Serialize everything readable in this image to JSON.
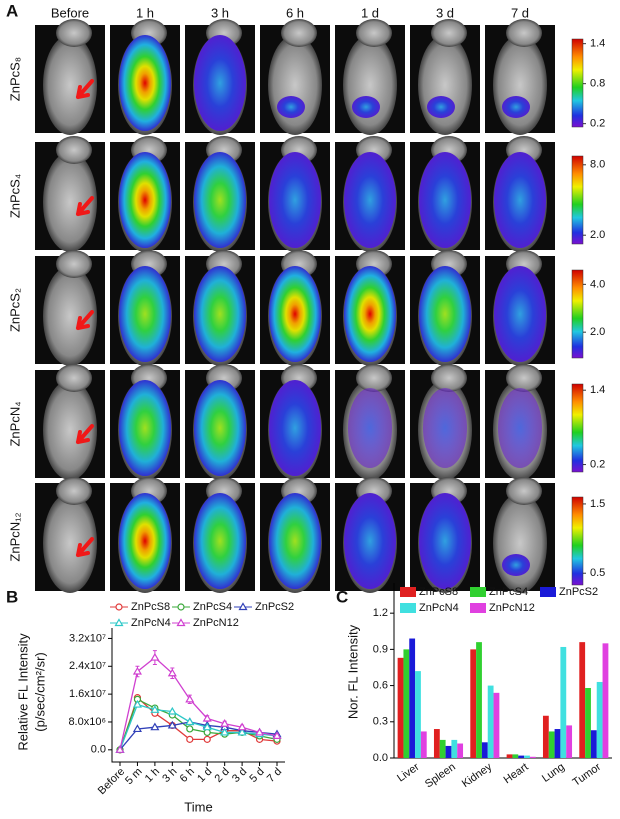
{
  "panel_a": {
    "panel_label": "A",
    "columns": [
      "Before",
      "1 h",
      "3 h",
      "6 h",
      "1 d",
      "3 d",
      "7 d"
    ],
    "rows": [
      {
        "name": "ZnPcS₈",
        "colorbar_lim": [
          0.15,
          1.47
        ],
        "colorbar_ticks": [
          1.4,
          0.8,
          0.2
        ]
      },
      {
        "name": "ZnPcS₄",
        "colorbar_lim": [
          1.25,
          8.75
        ],
        "colorbar_ticks": [
          {
            "value": 8,
            "label": "8.0"
          },
          {
            "value": 2,
            "label": "2.0"
          }
        ]
      },
      {
        "name": "ZnPcS₂",
        "colorbar_lim": [
          0.92,
          4.6
        ],
        "colorbar_ticks": [
          {
            "value": 4,
            "label": "4.0"
          },
          {
            "value": 2,
            "label": "2.0"
          }
        ]
      },
      {
        "name": "ZnPcN₄",
        "colorbar_lim": [
          0.08,
          1.5
        ],
        "colorbar_ticks": [
          1.4,
          0.2
        ]
      },
      {
        "name": "ZnPcN₁₂",
        "colorbar_lim": [
          0.33,
          1.6
        ],
        "colorbar_ticks": [
          1.5,
          0.5
        ]
      }
    ]
  },
  "chart_data": [
    {
      "type": "line",
      "panel_label": "B",
      "y_label": [
        "Relative FL Intensity",
        "(p/sec/cm²/sr)"
      ],
      "x_label": "Time",
      "categories": [
        "Before",
        "5 m",
        "1 h",
        "3 h",
        "6 h",
        "1 d",
        "2 d",
        "3 d",
        "5 d",
        "7 d"
      ],
      "ylim": [
        -3500000,
        35000000
      ],
      "yticks": [
        {
          "value": 0,
          "label": "0.0"
        },
        {
          "value": 8000000,
          "label": "8.0x10⁶"
        },
        {
          "value": 16000000,
          "label": "1.6x10⁷"
        },
        {
          "value": 24000000,
          "label": "2.4x10⁷"
        },
        {
          "value": 32000000,
          "label": "3.2x10⁷"
        }
      ],
      "series": [
        {
          "name": "ZnPcS8",
          "color": "#e03a3a",
          "marker": "circle",
          "values": [
            0,
            15000000,
            10500000,
            7000000,
            3000000,
            3000000,
            5500000,
            5500000,
            3000000,
            2500000
          ]
        },
        {
          "name": "ZnPcS4",
          "color": "#3aa83a",
          "marker": "circle",
          "values": [
            0,
            14500000,
            12000000,
            10000000,
            6000000,
            5000000,
            4500000,
            5000000,
            4000000,
            3000000
          ]
        },
        {
          "name": "ZnPcS2",
          "color": "#3040b8",
          "marker": "triangle",
          "values": [
            0,
            6000000,
            6500000,
            7000000,
            8000000,
            7000000,
            6500000,
            5500000,
            5000000,
            4500000
          ]
        },
        {
          "name": "ZnPcN4",
          "color": "#2ec8c8",
          "marker": "triangle",
          "values": [
            0,
            13000000,
            11500000,
            11000000,
            8000000,
            6500000,
            5000000,
            5000000,
            4500000,
            4000000
          ]
        },
        {
          "name": "ZnPcN12",
          "color": "#d040d0",
          "marker": "triangle",
          "values": [
            0,
            22500000,
            26500000,
            22000000,
            14500000,
            9000000,
            7500000,
            6500000,
            5000000,
            4000000
          ],
          "errors": [
            0,
            1500000,
            2000000,
            1500000,
            1200000,
            800000,
            700000,
            600000,
            500000,
            500000
          ]
        }
      ]
    },
    {
      "type": "bar",
      "panel_label": "C",
      "y_label": "Nor. FL Intensity",
      "categories": [
        "Liver",
        "Spleen",
        "Kidney",
        "Heart",
        "Lung",
        "Tumor"
      ],
      "ylim": [
        0,
        1.45
      ],
      "yticks": [
        {
          "value": 0,
          "label": "0.0"
        },
        0.3,
        0.6,
        0.9,
        1.2
      ],
      "series": [
        {
          "name": "ZnPcS8",
          "color": "#e02020",
          "values": [
            0.83,
            0.24,
            0.9,
            0.03,
            0.35,
            0.96
          ]
        },
        {
          "name": "ZnPcS4",
          "color": "#30d030",
          "values": [
            0.9,
            0.15,
            0.96,
            0.03,
            0.22,
            0.58
          ]
        },
        {
          "name": "ZnPcS2",
          "color": "#1a1ad8",
          "values": [
            0.99,
            0.1,
            0.13,
            0.02,
            0.24,
            0.23
          ]
        },
        {
          "name": "ZnPcN4",
          "color": "#40e0e0",
          "values": [
            0.72,
            0.15,
            0.6,
            0.02,
            0.92,
            0.63
          ]
        },
        {
          "name": "ZnPcN12",
          "color": "#e040e0",
          "values": [
            0.22,
            0.12,
            0.54,
            0.01,
            0.27,
            0.95
          ]
        }
      ]
    }
  ]
}
